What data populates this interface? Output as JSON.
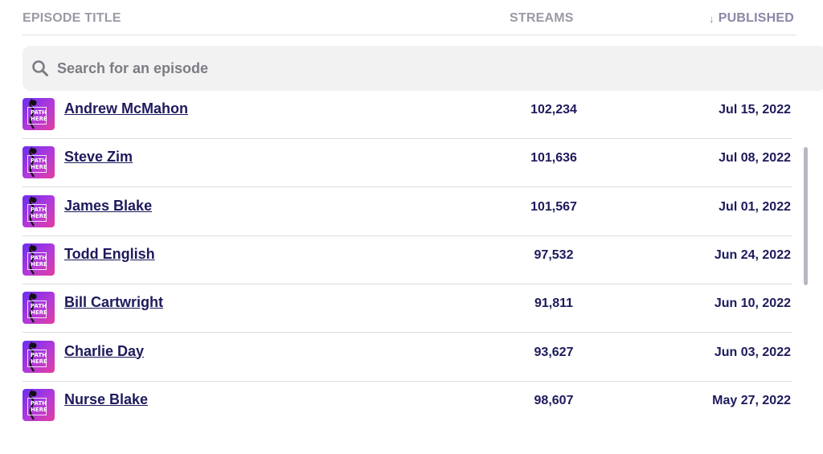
{
  "header": {
    "title": "EPISODE TITLE",
    "streams": "STREAMS",
    "published": "PUBLISHED",
    "sort_icon": "arrow-down-icon"
  },
  "search": {
    "placeholder": "Search for an episode",
    "value": "",
    "icon": "search-icon"
  },
  "thumbnail": {
    "line1": "PATH",
    "line2": "HERE",
    "colors": [
      "#6a2df0",
      "#b43ad8",
      "#e23da0"
    ]
  },
  "episodes": [
    {
      "title": "Andrew McMahon",
      "streams": "102,234",
      "published": "Jul 15, 2022"
    },
    {
      "title": "Steve Zim",
      "streams": "101,636",
      "published": "Jul 08, 2022"
    },
    {
      "title": "James Blake",
      "streams": "101,567",
      "published": "Jul 01, 2022"
    },
    {
      "title": "Todd English",
      "streams": "97,532",
      "published": "Jun 24, 2022"
    },
    {
      "title": "Bill Cartwright",
      "streams": "91,811",
      "published": "Jun 10, 2022"
    },
    {
      "title": "Charlie Day",
      "streams": "93,627",
      "published": "Jun 03, 2022"
    },
    {
      "title": "Nurse Blake",
      "streams": "98,607",
      "published": "May 27, 2022"
    }
  ]
}
